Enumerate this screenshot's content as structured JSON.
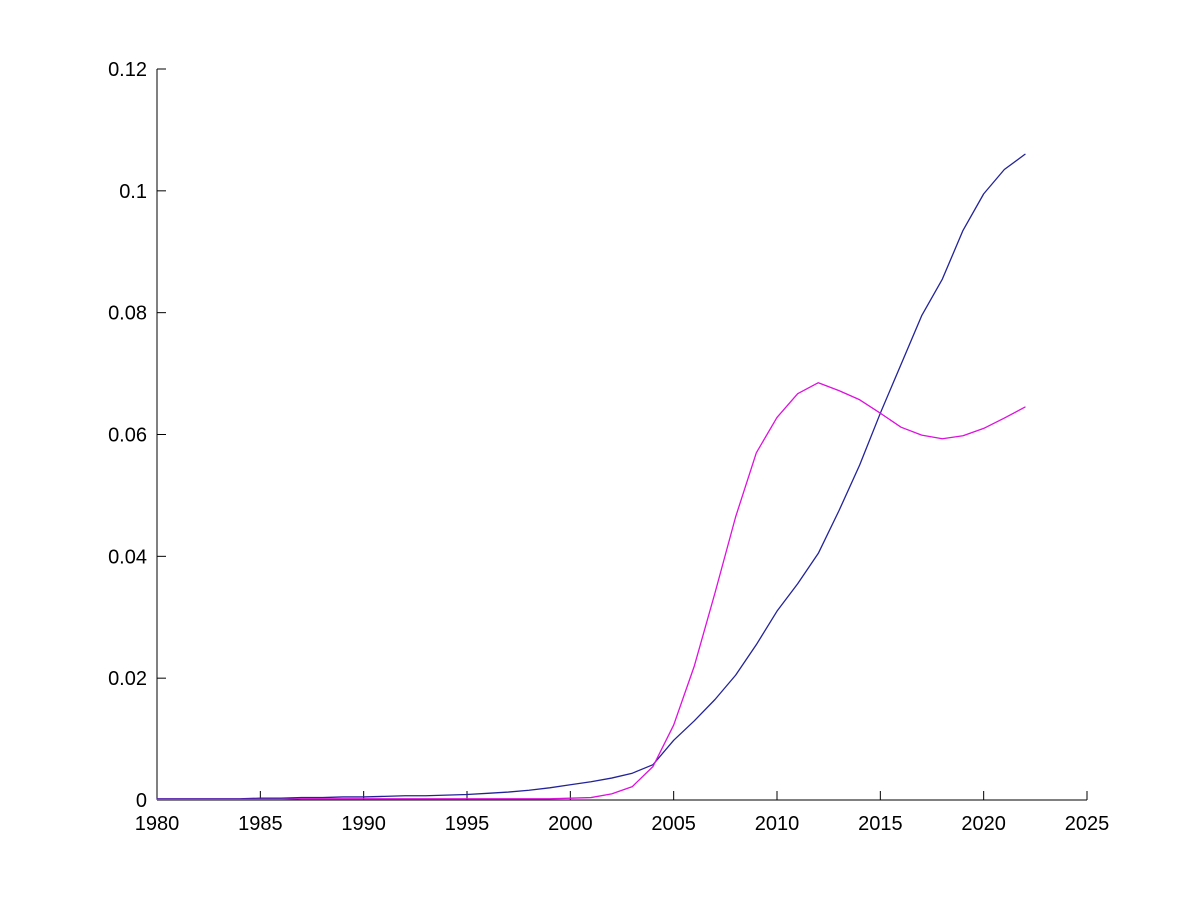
{
  "figure": {
    "background": "#ffffff",
    "axis_color": "#000000",
    "tick_label_color": "#000000"
  },
  "chart_data": {
    "type": "line",
    "title": "",
    "xlabel": "",
    "ylabel": "",
    "grid": false,
    "legend": "none",
    "xlim": [
      1980,
      2025
    ],
    "ylim": [
      0,
      0.12
    ],
    "x_ticks": [
      {
        "value": 1980,
        "label": "1980"
      },
      {
        "value": 1985,
        "label": "1985"
      },
      {
        "value": 1990,
        "label": "1990"
      },
      {
        "value": 1995,
        "label": "1995"
      },
      {
        "value": 2000,
        "label": "2000"
      },
      {
        "value": 2005,
        "label": "2005"
      },
      {
        "value": 2010,
        "label": "2010"
      },
      {
        "value": 2015,
        "label": "2015"
      },
      {
        "value": 2020,
        "label": "2020"
      },
      {
        "value": 2025,
        "label": "2025"
      }
    ],
    "y_ticks": [
      {
        "value": 0,
        "label": "0"
      },
      {
        "value": 0.02,
        "label": "0.02"
      },
      {
        "value": 0.04,
        "label": "0.04"
      },
      {
        "value": 0.06,
        "label": "0.06"
      },
      {
        "value": 0.08,
        "label": "0.08"
      },
      {
        "value": 0.1,
        "label": "0.1"
      },
      {
        "value": 0.12,
        "label": "0.12"
      }
    ],
    "x": [
      1980,
      1981,
      1982,
      1983,
      1984,
      1985,
      1986,
      1987,
      1988,
      1989,
      1990,
      1991,
      1992,
      1993,
      1994,
      1995,
      1996,
      1997,
      1998,
      1999,
      2000,
      2001,
      2002,
      2003,
      2004,
      2005,
      2006,
      2007,
      2008,
      2009,
      2010,
      2011,
      2012,
      2013,
      2014,
      2015,
      2016,
      2017,
      2018,
      2019,
      2020,
      2021,
      2022
    ],
    "series": [
      {
        "name": "dark-blue-line",
        "color": "#232399",
        "values": [
          0.0002,
          0.0002,
          0.0002,
          0.0002,
          0.0002,
          0.0003,
          0.0003,
          0.0004,
          0.0004,
          0.0005,
          0.0005,
          0.0006,
          0.0007,
          0.0007,
          0.0008,
          0.0009,
          0.0011,
          0.0013,
          0.0016,
          0.002,
          0.0025,
          0.003,
          0.0036,
          0.0044,
          0.0058,
          0.0098,
          0.013,
          0.0165,
          0.0205,
          0.0255,
          0.031,
          0.0355,
          0.0405,
          0.0475,
          0.055,
          0.0635,
          0.0715,
          0.0795,
          0.0855,
          0.0935,
          0.0995,
          0.1035,
          0.106
        ]
      },
      {
        "name": "magenta-line",
        "color": "#DD11DD",
        "values": [
          0.0001,
          0.0001,
          0.0001,
          0.0001,
          0.0001,
          0.0001,
          0.0001,
          0.0002,
          0.0002,
          0.0002,
          0.0002,
          0.0002,
          0.0002,
          0.0002,
          0.0002,
          0.0002,
          0.0002,
          0.0002,
          0.0002,
          0.0002,
          0.0003,
          0.0004,
          0.001,
          0.0022,
          0.0055,
          0.0123,
          0.022,
          0.034,
          0.0465,
          0.057,
          0.0628,
          0.0667,
          0.0685,
          0.0672,
          0.0657,
          0.0635,
          0.0612,
          0.0599,
          0.0593,
          0.0598,
          0.061,
          0.0627,
          0.0645
        ]
      }
    ]
  }
}
